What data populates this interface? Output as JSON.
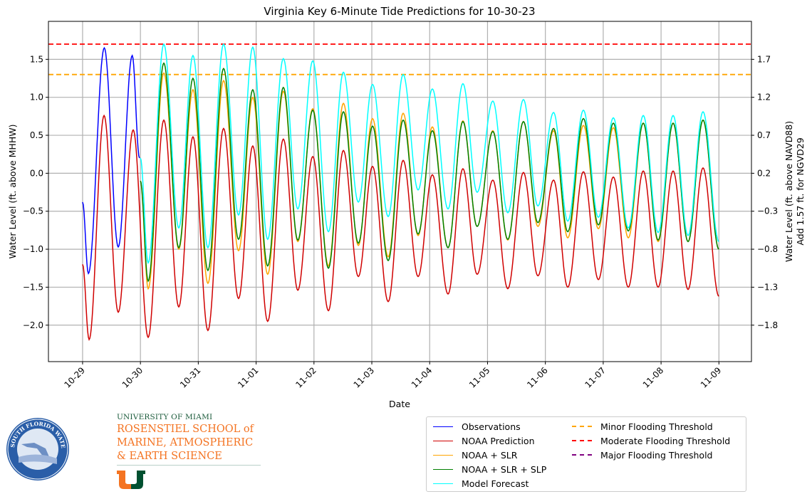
{
  "chart_data": {
    "type": "line",
    "title": "Virginia Key 6-Minute Tide Predictions for 10-30-23",
    "xlabel": "Date",
    "ylabel": "Water Level (ft. above MHHW)",
    "ylabel_right": [
      "Water Level (ft. above NAVD88)",
      "Add 1.57 ft. for NGVD29"
    ],
    "x_ticks": [
      "10-29",
      "10-30",
      "10-31",
      "11-01",
      "11-02",
      "11-03",
      "11-04",
      "11-05",
      "11-06",
      "11-07",
      "11-08",
      "11-09"
    ],
    "y_ticks": [
      1.5,
      1.0,
      0.5,
      0.0,
      -0.5,
      -1.0,
      -1.5,
      -2.0
    ],
    "y_ticks_labels": [
      "1.5",
      "1.0",
      "0.5",
      "0.0",
      "−0.5",
      "−1.0",
      "−1.5",
      "−2.0"
    ],
    "y_ticks_right_labels": [
      "1.7",
      "1.2",
      "0.7",
      "0.2",
      "−0.3",
      "−0.8",
      "−1.3",
      "−1.8"
    ],
    "ylim": [
      -2.48,
      2.0
    ],
    "xlim": [
      "10-28 09:50",
      "11-09 13:30"
    ],
    "grid": true,
    "legend_position": "below-right",
    "thresholds": [
      {
        "name": "Minor Flooding Threshold",
        "value": 1.3,
        "color": "#ffa500"
      },
      {
        "name": "Moderate Flooding Threshold",
        "value": 1.7,
        "color": "#ff0000"
      },
      {
        "name": "Major Flooding Threshold",
        "value": null,
        "color": "#800080"
      }
    ],
    "series": [
      {
        "name": "Observations",
        "color": "#0000ff",
        "t": [
          "10-29 00:00",
          "10-29 02:24",
          "10-29 09:00",
          "10-29 14:48",
          "10-29 20:36",
          "10-29 23:36"
        ],
        "y": [
          -0.38,
          -1.32,
          1.65,
          -0.97,
          1.55,
          0.2
        ]
      },
      {
        "name": "NOAA Prediction",
        "color": "#d00000",
        "t": [
          "10-29 00:00",
          "10-29 02:42",
          "10-29 08:54",
          "10-29 14:48",
          "10-29 21:00",
          "10-30 03:12",
          "10-30 09:42",
          "10-30 15:54",
          "10-30 21:48",
          "10-31 04:00",
          "10-31 10:30",
          "10-31 16:42",
          "10-31 22:36",
          "11-01 04:48",
          "11-01 11:18",
          "11-01 17:18",
          "11-01 23:30",
          "11-02 06:00",
          "11-02 12:12",
          "11-02 18:24",
          "11-03 00:18",
          "11-03 06:48",
          "11-03 13:00",
          "11-03 19:12",
          "11-04 01:06",
          "11-04 07:36",
          "11-04 13:48",
          "11-04 19:42",
          "11-05 02:12",
          "11-05 08:24",
          "11-05 14:54",
          "11-05 20:54",
          "11-06 03:24",
          "11-06 09:18",
          "11-06 15:48",
          "11-06 22:00",
          "11-07 04:12",
          "11-07 10:24",
          "11-07 16:36",
          "11-07 22:48",
          "11-08 05:00",
          "11-08 11:12",
          "11-08 17:24",
          "11-09 00:00"
        ],
        "y": [
          -1.2,
          -2.19,
          0.76,
          -1.83,
          0.57,
          -2.16,
          0.7,
          -1.76,
          0.48,
          -2.07,
          0.59,
          -1.65,
          0.36,
          -1.95,
          0.45,
          -1.54,
          0.22,
          -1.81,
          0.3,
          -1.36,
          0.09,
          -1.69,
          0.17,
          -1.36,
          -0.02,
          -1.59,
          0.06,
          -1.33,
          -0.09,
          -1.52,
          0.01,
          -1.35,
          -0.09,
          -1.5,
          0.02,
          -1.4,
          -0.05,
          -1.5,
          0.03,
          -1.5,
          0.03,
          -1.53,
          0.07,
          -1.62
        ]
      },
      {
        "name": "NOAA + SLR",
        "color": "#ffa500",
        "t": [
          "10-30 00:00",
          "10-30 03:12",
          "10-30 09:42",
          "10-30 15:54",
          "10-30 21:48",
          "10-31 04:00",
          "10-31 10:30",
          "10-31 16:42",
          "10-31 22:36",
          "11-01 04:48",
          "11-01 11:18",
          "11-01 17:18",
          "11-01 23:30",
          "11-02 06:00",
          "11-02 12:12",
          "11-02 18:24",
          "11-03 00:18",
          "11-03 06:48",
          "11-03 13:00",
          "11-03 19:12",
          "11-04 01:06",
          "11-04 07:36",
          "11-04 13:48",
          "11-04 19:42",
          "11-05 02:12",
          "11-05 08:24",
          "11-05 14:54",
          "11-05 20:54",
          "11-06 03:24",
          "11-06 09:18",
          "11-06 15:48",
          "11-06 22:00",
          "11-07 04:12",
          "11-07 10:24",
          "11-07 16:36",
          "11-07 22:48",
          "11-08 05:00",
          "11-08 11:12",
          "11-08 17:24",
          "11-09 00:00"
        ],
        "y": [
          -0.1,
          -1.52,
          1.32,
          -1.0,
          1.1,
          -1.45,
          1.22,
          -1.02,
          1.0,
          -1.33,
          1.08,
          -0.9,
          0.85,
          -1.22,
          0.92,
          -0.95,
          0.72,
          -1.1,
          0.79,
          -0.82,
          0.61,
          -0.98,
          0.69,
          -0.7,
          0.56,
          -0.88,
          0.68,
          -0.7,
          0.56,
          -0.85,
          0.63,
          -0.73,
          0.6,
          -0.85,
          0.66,
          -0.9,
          0.66,
          -0.9,
          0.7,
          -1.0
        ]
      },
      {
        "name": "NOAA + SLR + SLP",
        "color": "#008000",
        "t": [
          "10-30 00:00",
          "10-30 03:12",
          "10-30 09:42",
          "10-30 15:54",
          "10-30 21:48",
          "10-31 04:00",
          "10-31 10:30",
          "10-31 16:42",
          "10-31 22:36",
          "11-01 04:48",
          "11-01 11:18",
          "11-01 17:18",
          "11-01 23:30",
          "11-02 06:00",
          "11-02 12:12",
          "11-02 18:24",
          "11-03 00:18",
          "11-03 06:48",
          "11-03 13:00",
          "11-03 19:12",
          "11-04 01:06",
          "11-04 07:36",
          "11-04 13:48",
          "11-04 19:42",
          "11-05 02:12",
          "11-05 08:24",
          "11-05 14:54",
          "11-05 20:54",
          "11-06 03:24",
          "11-06 09:18",
          "11-06 15:48",
          "11-06 22:00",
          "11-07 04:12",
          "11-07 10:24",
          "11-07 16:36",
          "11-07 22:48",
          "11-08 05:00",
          "11-08 11:12",
          "11-08 17:24",
          "11-09 00:00"
        ],
        "y": [
          -0.1,
          -1.42,
          1.45,
          -0.98,
          1.25,
          -1.28,
          1.38,
          -0.87,
          1.1,
          -1.22,
          1.13,
          -0.88,
          0.83,
          -1.25,
          0.81,
          -0.92,
          0.62,
          -1.15,
          0.7,
          -0.8,
          0.56,
          -0.98,
          0.68,
          -0.7,
          0.55,
          -0.87,
          0.68,
          -0.65,
          0.59,
          -0.77,
          0.72,
          -0.68,
          0.66,
          -0.76,
          0.66,
          -0.88,
          0.66,
          -0.9,
          0.7,
          -1.0
        ]
      },
      {
        "name": "Model Forecast",
        "color": "#00ffff",
        "t": [
          "10-30 00:00",
          "10-30 03:12",
          "10-30 09:42",
          "10-30 15:54",
          "10-30 21:48",
          "10-31 04:00",
          "10-31 10:30",
          "10-31 16:42",
          "10-31 22:36",
          "11-01 04:48",
          "11-01 11:18",
          "11-01 17:18",
          "11-01 23:30",
          "11-02 06:00",
          "11-02 12:12",
          "11-02 18:24",
          "11-03 00:18",
          "11-03 06:48",
          "11-03 13:00",
          "11-03 19:12",
          "11-04 01:06",
          "11-04 07:36",
          "11-04 13:48",
          "11-04 19:42",
          "11-05 02:12",
          "11-05 08:24",
          "11-05 14:54",
          "11-05 20:54",
          "11-06 03:24",
          "11-06 09:18",
          "11-06 15:48",
          "11-06 22:00",
          "11-07 04:12",
          "11-07 10:24",
          "11-07 16:36",
          "11-07 22:48",
          "11-08 05:00",
          "11-08 11:12",
          "11-08 17:24",
          "11-09 00:00"
        ],
        "y": [
          0.2,
          -1.18,
          1.7,
          -0.72,
          1.55,
          -0.98,
          1.7,
          -0.55,
          1.66,
          -0.87,
          1.51,
          -0.47,
          1.48,
          -0.77,
          1.33,
          -0.38,
          1.17,
          -0.57,
          1.3,
          -0.22,
          1.11,
          -0.47,
          1.18,
          -0.25,
          0.95,
          -0.52,
          0.97,
          -0.43,
          0.8,
          -0.63,
          0.83,
          -0.58,
          0.73,
          -0.72,
          0.76,
          -0.78,
          0.76,
          -0.82,
          0.81,
          -0.9
        ]
      }
    ]
  },
  "legend": {
    "col1": [
      "Observations",
      "NOAA Prediction",
      "NOAA + SLR",
      "NOAA + SLR + SLP",
      "Model Forecast"
    ],
    "col2": [
      "Minor Flooding Threshold",
      "Moderate Flooding Threshold",
      "Major Flooding Threshold"
    ]
  },
  "logos": {
    "sfwmd": "SOUTH FLORIDA WATER MANAGEMENT DISTRICT",
    "um_university": "UNIVERSITY OF MIAMI",
    "um_school": [
      "ROSENSTIEL SCHOOL of",
      "MARINE, ATMOSPHERIC",
      "& EARTH SCIENCE"
    ]
  }
}
